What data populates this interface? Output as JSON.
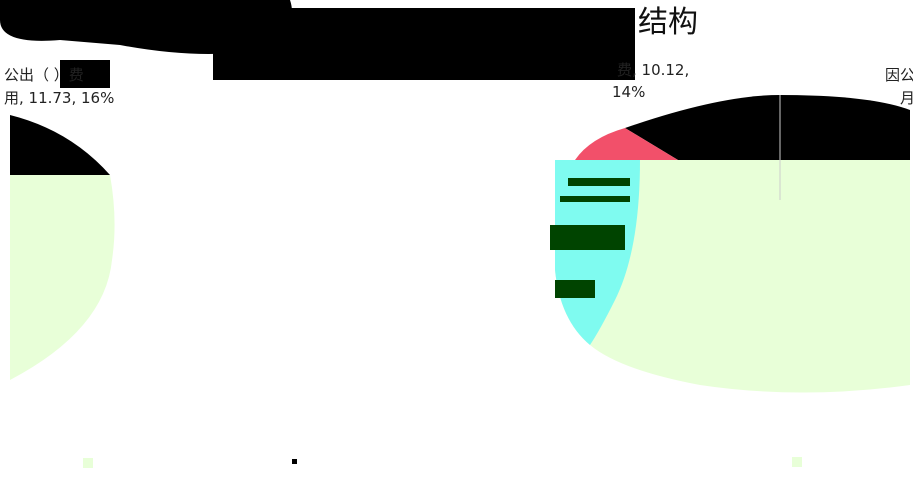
{
  "title_fragment": "结构",
  "labels": {
    "left_line1": "公出（ ）费",
    "left_line2": "用, 11.73, 16%",
    "mid_line1": "费, 10.12,",
    "mid_line2": "14%",
    "right_line1": "因公",
    "right_line2": "月"
  }
}
